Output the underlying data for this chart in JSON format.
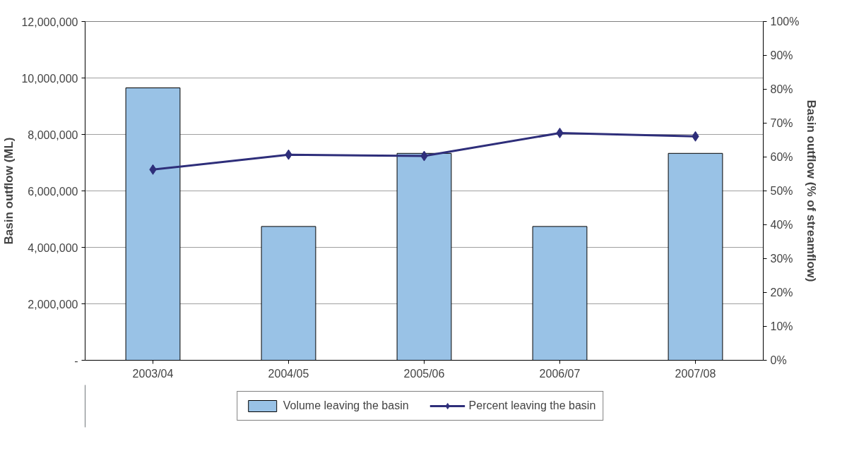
{
  "chart_data": {
    "type": "bar",
    "categories": [
      "2003/04",
      "2004/05",
      "2005/06",
      "2006/07",
      "2007/08"
    ],
    "ylabel": "Basin outflow (ML)",
    "y2label": "Basin outflow (% of streamflow)",
    "series": [
      {
        "name": "Volume leaving the basin",
        "color": "#99c2e6",
        "values": [
          9650000,
          4740000,
          7330000,
          4740000,
          7330000
        ]
      },
      {
        "name": "Percent leaving the basin",
        "type": "line",
        "axis": "y2",
        "color": "#2e2e7a",
        "values": [
          56.3,
          60.7,
          60.3,
          67.1,
          66.1
        ]
      }
    ],
    "ylim": [
      0,
      12000000
    ],
    "yticks": [
      {
        "value": 0,
        "label": "-"
      },
      {
        "value": 2000000,
        "label": "2,000,000"
      },
      {
        "value": 4000000,
        "label": "4,000,000"
      },
      {
        "value": 6000000,
        "label": "6,000,000"
      },
      {
        "value": 8000000,
        "label": "8,000,000"
      },
      {
        "value": 10000000,
        "label": "10,000,000"
      },
      {
        "value": 12000000,
        "label": "12,000,000"
      }
    ],
    "y2lim": [
      0,
      100
    ],
    "y2ticks": [
      {
        "value": 0,
        "label": "0%"
      },
      {
        "value": 10,
        "label": "10%"
      },
      {
        "value": 20,
        "label": "20%"
      },
      {
        "value": 30,
        "label": "30%"
      },
      {
        "value": 40,
        "label": "40%"
      },
      {
        "value": 50,
        "label": "50%"
      },
      {
        "value": 60,
        "label": "60%"
      },
      {
        "value": 70,
        "label": "70%"
      },
      {
        "value": 80,
        "label": "80%"
      },
      {
        "value": 90,
        "label": "90%"
      },
      {
        "value": 100,
        "label": "100%"
      }
    ],
    "grid": "y",
    "legend": "bottom",
    "marker": "diamond",
    "line_style": "solid"
  }
}
